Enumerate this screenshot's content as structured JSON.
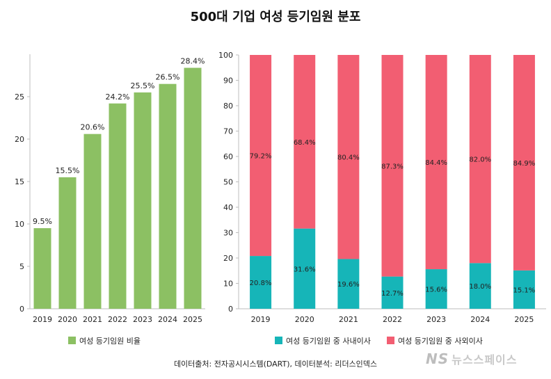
{
  "title": "500대 기업 여성 등기임원 분포",
  "source": "데이터출처: 전자공시시스템(DART), 데이터분석: 리더스인덱스",
  "watermark": {
    "mark": "NS",
    "text": "뉴스스페이스"
  },
  "chart_data": [
    {
      "type": "bar",
      "categories": [
        "2019",
        "2020",
        "2021",
        "2022",
        "2023",
        "2024",
        "2025"
      ],
      "values": [
        9.5,
        15.5,
        20.6,
        24.2,
        25.5,
        26.5,
        28.4
      ],
      "labels": [
        "9.5%",
        "15.5%",
        "20.6%",
        "24.2%",
        "25.5%",
        "26.5%",
        "28.4%"
      ],
      "yticks": [
        "0",
        "5",
        "10",
        "15",
        "20",
        "25"
      ],
      "ylim": [
        0,
        30
      ],
      "legend": "여성 등기임원 비율",
      "color": "#8cc063",
      "grid": false
    },
    {
      "type": "bar",
      "stacked": true,
      "categories": [
        "2019",
        "2020",
        "2021",
        "2022",
        "2023",
        "2024",
        "2025"
      ],
      "yticks": [
        "0",
        "10",
        "20",
        "30",
        "40",
        "50",
        "60",
        "70",
        "80",
        "90",
        "100"
      ],
      "ylim": [
        0,
        100
      ],
      "grid": false,
      "series": [
        {
          "name": "여성 등기임원 중 사내이사",
          "color": "#16b5b8",
          "values": [
            20.8,
            31.6,
            19.6,
            12.7,
            15.6,
            18.0,
            15.1
          ],
          "labels": [
            "20.8%",
            "31.6%",
            "19.6%",
            "12.7%",
            "15.6%",
            "18.0%",
            "15.1%"
          ]
        },
        {
          "name": "여성 등기임원 중 사외이사",
          "color": "#f25e72",
          "values": [
            79.2,
            68.4,
            80.4,
            87.3,
            84.4,
            82.0,
            84.9
          ],
          "labels": [
            "79.2%",
            "68.4%",
            "80.4%",
            "87.3%",
            "84.4%",
            "82.0%",
            "84.9%"
          ]
        }
      ]
    }
  ]
}
